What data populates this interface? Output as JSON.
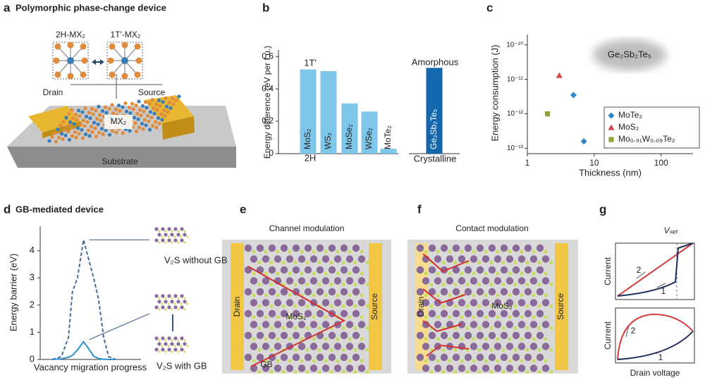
{
  "panel_a": {
    "label": "a",
    "title": "Polymorphic phase-change device",
    "phase_left": "2H-MX₂",
    "phase_right": "1T′-MX₂",
    "drain": "Drain",
    "source": "Source",
    "channel": "MX₂",
    "substrate": "Substrate"
  },
  "chart_data": [
    {
      "type": "bar",
      "label": "b",
      "ylabel": "Energy difference (eV per f.u.)",
      "categories": [
        "MoS₂",
        "WS₂",
        "MoSe₂",
        "WSe₂",
        "MoTe₂",
        "Ge₂Sb₂Te₅"
      ],
      "values": [
        0.52,
        0.51,
        0.31,
        0.26,
        0.03,
        0.53
      ],
      "colors": [
        "#7fc7ea",
        "#7fc7ea",
        "#7fc7ea",
        "#7fc7ea",
        "#7fc7ea",
        "#1467ac"
      ],
      "ylim": [
        0,
        0.64
      ],
      "yticks": [
        0,
        0.2,
        0.4,
        0.6
      ],
      "annotations": [
        "1T′",
        "2H",
        "Amorphous",
        "Crystalline"
      ]
    },
    {
      "type": "scatter",
      "label": "c",
      "xlabel": "Thickness (nm)",
      "ylabel": "Energy consumption (J)",
      "log_x": true,
      "log_y": true,
      "xlim": [
        1,
        300
      ],
      "xticks": [
        1,
        10,
        100
      ],
      "ylim": [
        7e-14,
        2e-10
      ],
      "yticks": [
        {
          "value": 1e-13,
          "label": "10⁻¹³"
        },
        {
          "value": 1e-12,
          "label": "10⁻¹²"
        },
        {
          "value": 1e-11,
          "label": "10⁻¹¹"
        },
        {
          "value": 1e-10,
          "label": "10⁻¹⁰"
        }
      ],
      "series": [
        {
          "name": "MoTe₂",
          "color": "#2a86c6",
          "marker": "diamond",
          "x": [
            4.9,
            7
          ],
          "values": [
            3.5e-12,
            1.6e-13
          ]
        },
        {
          "name": "MoS₂",
          "color": "#d4424a",
          "marker": "triangle",
          "x": [
            3
          ],
          "values": [
            1.3e-11
          ]
        },
        {
          "name": "Mo₀.₉₁W₀.₀₉Te₂",
          "color": "#8da53a",
          "marker": "square",
          "x": [
            2
          ],
          "values": [
            1e-12
          ]
        }
      ],
      "annotation": "Ge₂Sb₂Te₅",
      "legend": "lower-right"
    },
    {
      "type": "line",
      "label": "d",
      "title": "GB-mediated device",
      "xlabel": "Vacancy migration progress",
      "ylabel": "Energy barrier (eV)",
      "x": [
        0.12,
        0.21,
        0.28,
        0.32,
        0.37,
        0.43,
        0.48,
        0.53,
        0.58,
        0.63,
        0.68,
        0.75
      ],
      "xlim": [
        0,
        1
      ],
      "ylim": [
        0,
        4.9
      ],
      "yticks": [
        0,
        1,
        2,
        3,
        4
      ],
      "series": [
        {
          "name": "V₂S without GB",
          "color": "#4a6a98",
          "dashed": true,
          "values": [
            0,
            0.1,
            0.8,
            2.5,
            3.0,
            4.4,
            3.7,
            3.0,
            2.2,
            0.8,
            0.1,
            0
          ]
        },
        {
          "name": "V₂S with GB",
          "color": "#2c90cf",
          "dashed": false,
          "values": [
            0,
            0.02,
            0.08,
            0.15,
            0.35,
            0.65,
            0.4,
            0.12,
            0.03,
            0.01,
            0,
            0
          ]
        }
      ]
    }
  ],
  "panel_e": {
    "label": "e",
    "title": "Channel modulation",
    "drain": "Drain",
    "channel": "MoS₂",
    "source": "Source",
    "boundary": "GB"
  },
  "panel_f": {
    "label": "f",
    "title": "Contact modulation",
    "drain": "Drain",
    "channel": "MoS₂",
    "source": "Source"
  },
  "panel_g": {
    "label": "g",
    "vset": "Vₛₑₜ",
    "ylabel_top": "Current",
    "ylabel_bottom": "Current",
    "xlabel": "Drain voltage",
    "step_top_2": "2",
    "step_top_1": "1",
    "step_bottom_2": "2",
    "step_bottom_1": "1"
  }
}
